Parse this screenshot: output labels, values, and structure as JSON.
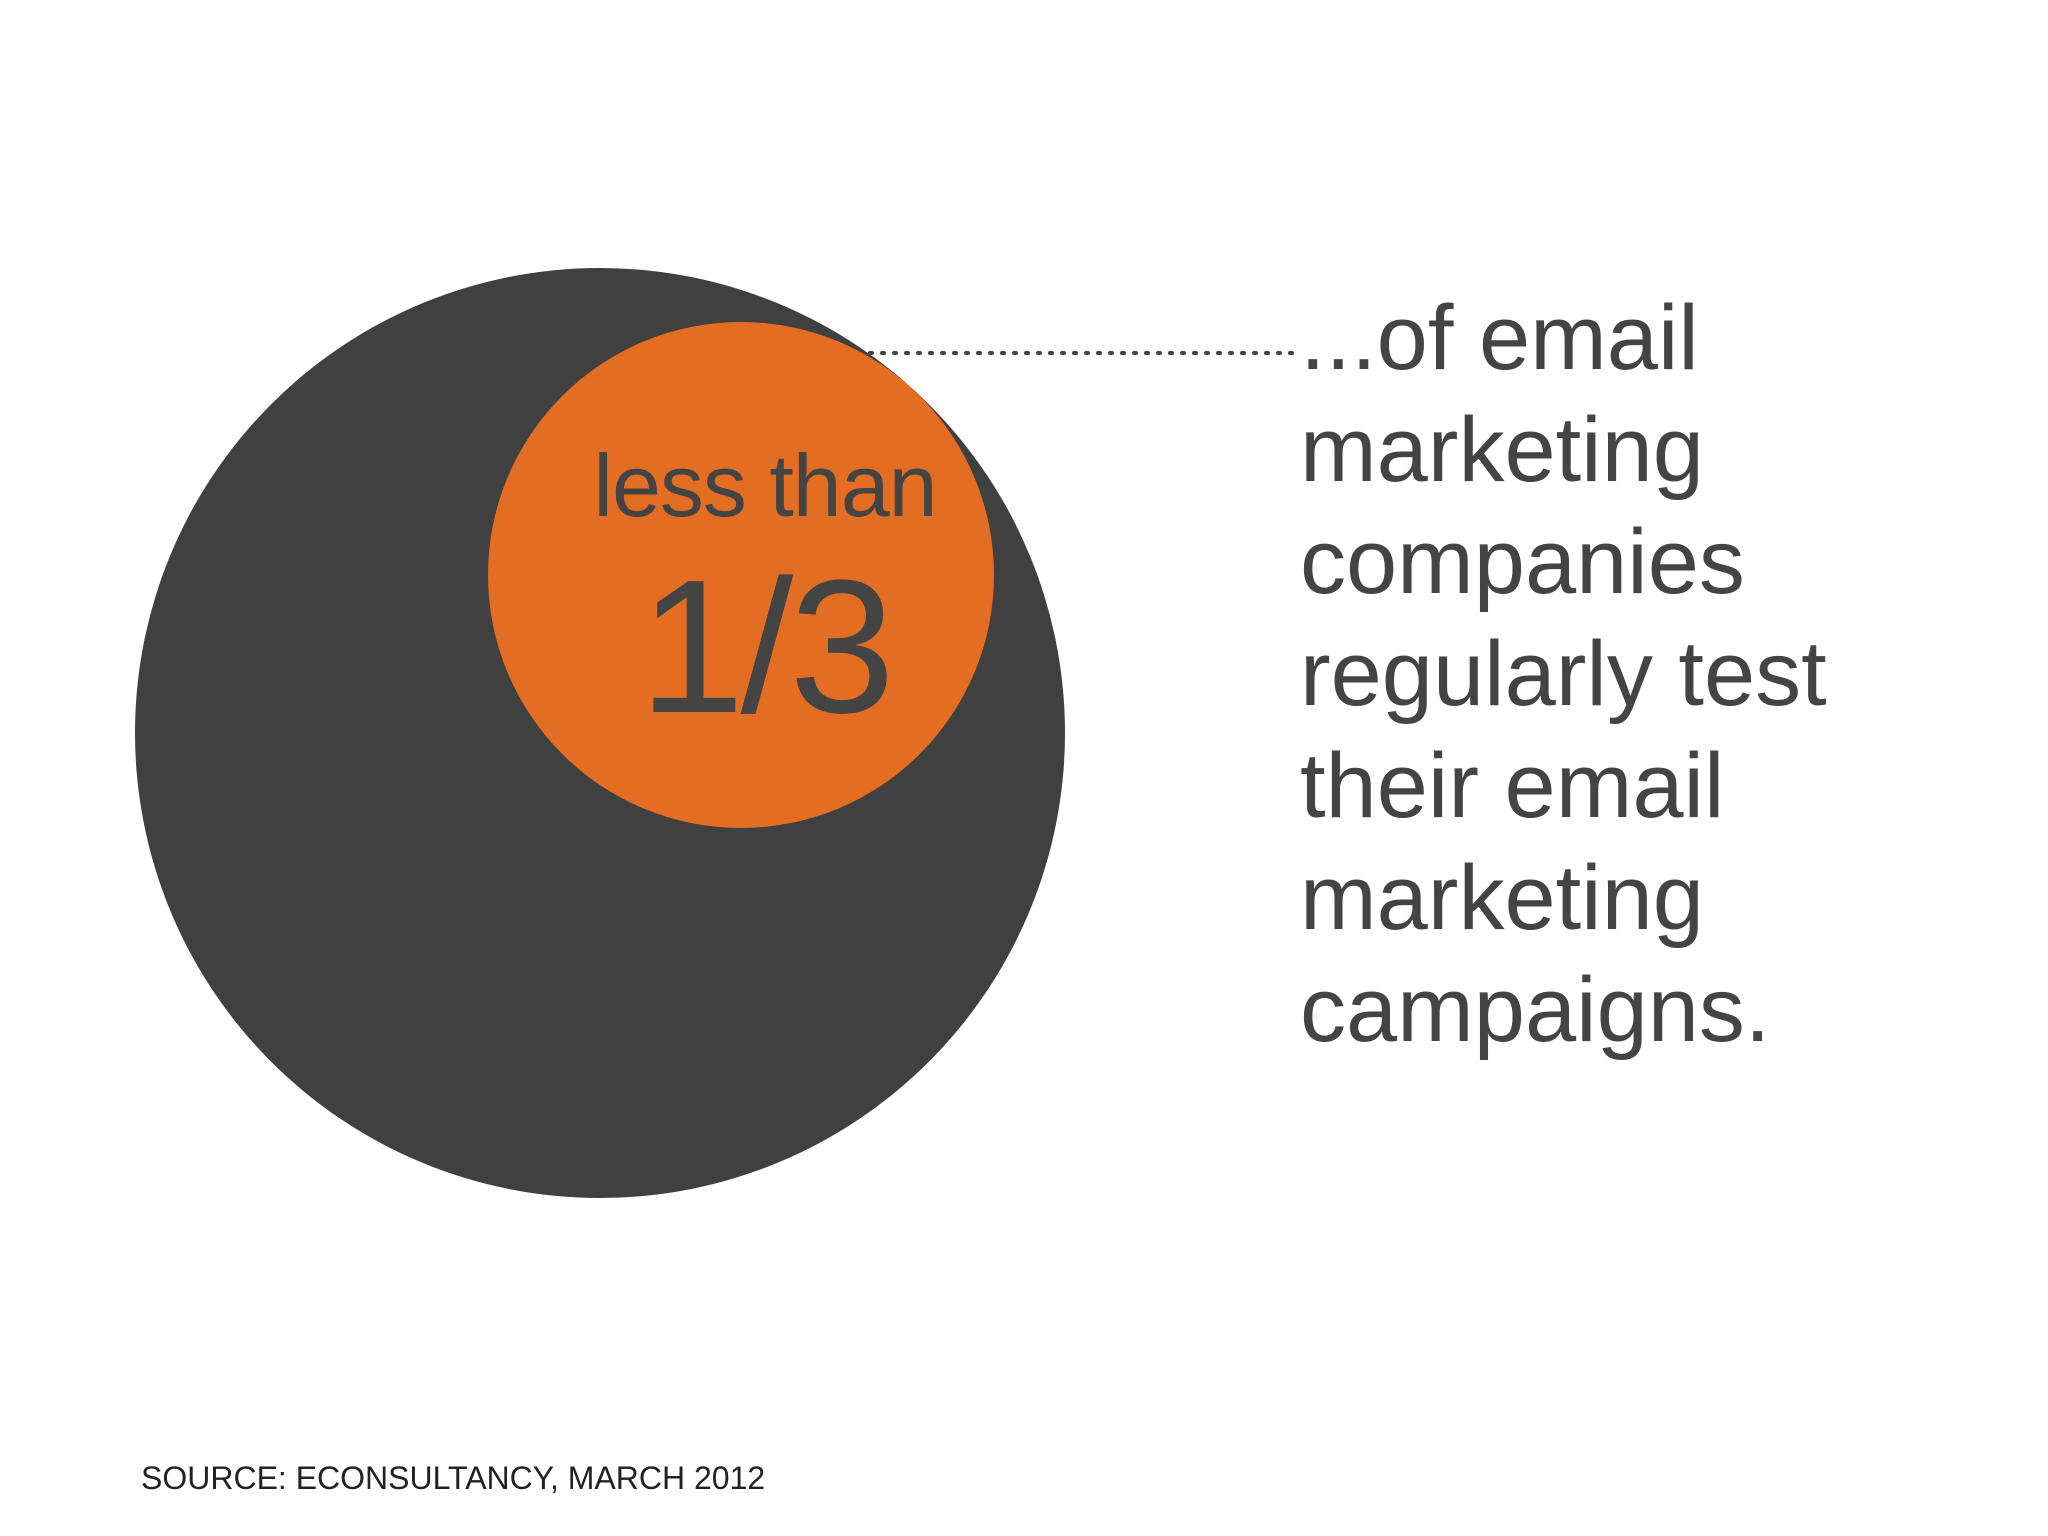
{
  "stat": {
    "caption": "less than",
    "value": "1/3",
    "fraction": 0.3333
  },
  "description_lines": [
    "...of email",
    "marketing",
    "companies",
    "regularly test",
    "their email",
    "marketing",
    "campaigns."
  ],
  "source": "SOURCE: ECONSULTANCY, MARCH 2012",
  "colors": {
    "outer_circle": "#404040",
    "inner_circle": "#e36e23",
    "text": "#444444",
    "leader_line": "#444444"
  }
}
